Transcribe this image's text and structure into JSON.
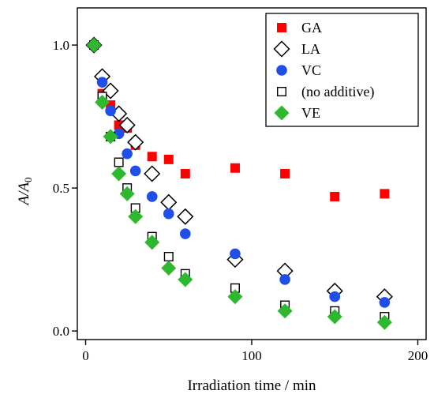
{
  "chart_data": {
    "type": "scatter",
    "title": "",
    "xlabel": "Irradiation time / min",
    "ylabel": {
      "base": "A/A",
      "subscript": "0"
    },
    "xlim": [
      -5,
      205
    ],
    "ylim": [
      -0.03,
      1.13
    ],
    "xticks": [
      0,
      100,
      200
    ],
    "xtick_labels": [
      "0",
      "100",
      "200"
    ],
    "yticks": [
      0.0,
      0.5,
      1.0
    ],
    "ytick_labels": [
      "0.0",
      "0.5",
      "1.0"
    ],
    "grid": false,
    "legend_position": "top-right",
    "series": [
      {
        "name": "GA",
        "marker": "square-filled",
        "color": "#ff0000",
        "points": [
          [
            5,
            1.0
          ],
          [
            10,
            0.83
          ],
          [
            15,
            0.79
          ],
          [
            20,
            0.72
          ],
          [
            25,
            0.71
          ],
          [
            30,
            0.65
          ],
          [
            40,
            0.61
          ],
          [
            50,
            0.6
          ],
          [
            60,
            0.55
          ],
          [
            90,
            0.57
          ],
          [
            120,
            0.55
          ],
          [
            150,
            0.47
          ],
          [
            180,
            0.48
          ]
        ]
      },
      {
        "name": "LA",
        "marker": "diamond-open",
        "color": "#000000",
        "points": [
          [
            5,
            1.0
          ],
          [
            10,
            0.89
          ],
          [
            15,
            0.84
          ],
          [
            20,
            0.76
          ],
          [
            25,
            0.72
          ],
          [
            30,
            0.66
          ],
          [
            40,
            0.55
          ],
          [
            50,
            0.45
          ],
          [
            60,
            0.4
          ],
          [
            90,
            0.25
          ],
          [
            120,
            0.21
          ],
          [
            150,
            0.14
          ],
          [
            180,
            0.12
          ]
        ]
      },
      {
        "name": "VC",
        "marker": "circle-filled",
        "color": "#1f4fe8",
        "points": [
          [
            5,
            1.0
          ],
          [
            10,
            0.87
          ],
          [
            15,
            0.77
          ],
          [
            20,
            0.69
          ],
          [
            25,
            0.62
          ],
          [
            30,
            0.56
          ],
          [
            40,
            0.47
          ],
          [
            50,
            0.41
          ],
          [
            60,
            0.34
          ],
          [
            90,
            0.27
          ],
          [
            120,
            0.18
          ],
          [
            150,
            0.12
          ],
          [
            180,
            0.1
          ]
        ]
      },
      {
        "name": "(no additive)",
        "marker": "square-open",
        "color": "#000000",
        "points": [
          [
            5,
            1.0
          ],
          [
            10,
            0.82
          ],
          [
            15,
            0.68
          ],
          [
            20,
            0.59
          ],
          [
            25,
            0.5
          ],
          [
            30,
            0.43
          ],
          [
            40,
            0.33
          ],
          [
            50,
            0.26
          ],
          [
            60,
            0.2
          ],
          [
            90,
            0.15
          ],
          [
            120,
            0.09
          ],
          [
            150,
            0.07
          ],
          [
            180,
            0.05
          ]
        ]
      },
      {
        "name": "VE",
        "marker": "diamond-filled",
        "color": "#2db82d",
        "points": [
          [
            5,
            1.0
          ],
          [
            10,
            0.8
          ],
          [
            15,
            0.68
          ],
          [
            20,
            0.55
          ],
          [
            25,
            0.48
          ],
          [
            30,
            0.4
          ],
          [
            40,
            0.31
          ],
          [
            50,
            0.22
          ],
          [
            60,
            0.18
          ],
          [
            90,
            0.12
          ],
          [
            120,
            0.07
          ],
          [
            150,
            0.05
          ],
          [
            180,
            0.03
          ]
        ]
      }
    ]
  }
}
